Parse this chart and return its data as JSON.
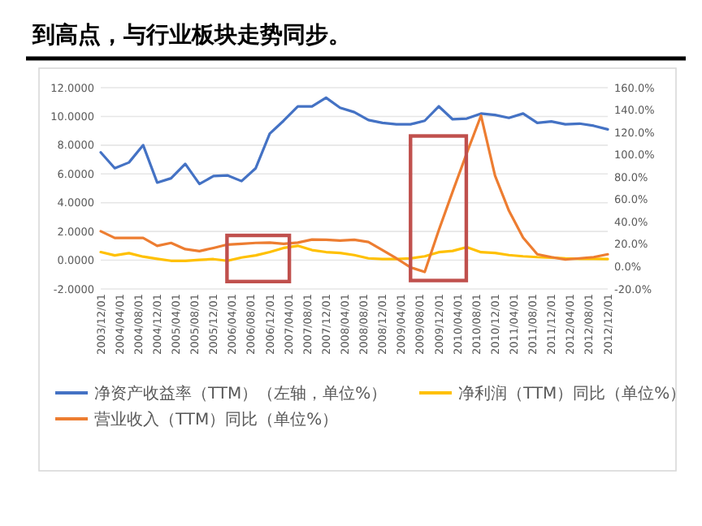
{
  "chart_data": {
    "type": "line",
    "title": "到高点，与行业板块走势同步。",
    "x": [
      "2003-12-01",
      "2004-03-01",
      "2004-06-01",
      "2004-09-01",
      "2004-12-01",
      "2005-03-01",
      "2005-06-01",
      "2005-09-01",
      "2005-12-01",
      "2006-03-01",
      "2006-06-01",
      "2006-09-01",
      "2006-12-01",
      "2007-03-01",
      "2007-06-01",
      "2007-09-01",
      "2007-12-01",
      "2008-03-01",
      "2008-06-01",
      "2008-09-01",
      "2008-12-01",
      "2009-03-01",
      "2009-06-01",
      "2009-09-01",
      "2009-12-01",
      "2010-03-01",
      "2010-06-01",
      "2010-09-01",
      "2010-12-01",
      "2011-03-01",
      "2011-06-01",
      "2011-09-01",
      "2011-12-01",
      "2012-03-01",
      "2012-06-01",
      "2012-09-01",
      "2012-12-01"
    ],
    "series": [
      {
        "name": "净资产收益率（TTM）（左轴，单位%）",
        "color": "#4472c4",
        "values": [
          7.5,
          6.4,
          6.8,
          8.0,
          5.4,
          5.7,
          6.7,
          5.3,
          5.85,
          5.9,
          5.5,
          6.4,
          8.8,
          9.7,
          10.7,
          10.7,
          11.3,
          10.6,
          10.3,
          9.75,
          9.55,
          9.45,
          9.45,
          9.7,
          10.7,
          9.8,
          9.85,
          10.2,
          10.1,
          9.9,
          10.2,
          9.55,
          9.65,
          9.45,
          9.5,
          9.35,
          9.1
        ]
      },
      {
        "name": "净利润（TTM）同比（单位%）",
        "color": "#ffc000",
        "axis": "y2",
        "values": [
          13,
          10,
          12,
          8.9,
          7,
          5.2,
          5.2,
          6,
          6.7,
          5.2,
          8.1,
          10,
          13,
          16.7,
          18.6,
          14.8,
          13,
          12.2,
          10.3,
          7.4,
          6.7,
          6.7,
          7.4,
          9.2,
          12.9,
          14,
          17.4,
          12.9,
          12.2,
          10.3,
          9.2,
          8.5,
          8.1,
          7.4,
          7,
          7,
          6.7
        ]
      },
      {
        "name": "营业收入（TTM）同比（单位%）",
        "color": "#ed7d31",
        "axis": "y2",
        "values": [
          31.6,
          25.6,
          25.6,
          25.6,
          18.6,
          21.2,
          15.6,
          13.8,
          16.7,
          19.7,
          20.4,
          21.2,
          21.5,
          20.4,
          21.5,
          24.2,
          24,
          23.3,
          24,
          22,
          14.8,
          7.4,
          -0.7,
          -4.8,
          32.5,
          67,
          101.6,
          135,
          81.3,
          50,
          25.9,
          11,
          8.5,
          6.3,
          7.4,
          8.5,
          11
        ]
      }
    ],
    "xlim": [
      "2003-12-01",
      "2012-12-01"
    ],
    "xticks": [
      {
        "value": "2003-12-01",
        "label": "2003/12/01"
      },
      {
        "value": "2004-04-01",
        "label": "2004/04/01"
      },
      {
        "value": "2004-08-01",
        "label": "2004/08/01"
      },
      {
        "value": "2004-12-01",
        "label": "2004/12/01"
      },
      {
        "value": "2005-04-01",
        "label": "2005/04/01"
      },
      {
        "value": "2005-08-01",
        "label": "2005/08/01"
      },
      {
        "value": "2005-12-01",
        "label": "2005/12/01"
      },
      {
        "value": "2006-04-01",
        "label": "2006/04/01"
      },
      {
        "value": "2006-08-01",
        "label": "2006/08/01"
      },
      {
        "value": "2006-12-01",
        "label": "2006/12/01"
      },
      {
        "value": "2007-04-01",
        "label": "2007/04/01"
      },
      {
        "value": "2007-08-01",
        "label": "2007/08/01"
      },
      {
        "value": "2007-12-01",
        "label": "2007/12/01"
      },
      {
        "value": "2008-04-01",
        "label": "2008/04/01"
      },
      {
        "value": "2008-08-01",
        "label": "2008/08/01"
      },
      {
        "value": "2008-12-01",
        "label": "2008/12/01"
      },
      {
        "value": "2009-04-01",
        "label": "2009/04/01"
      },
      {
        "value": "2009-08-01",
        "label": "2009/08/01"
      },
      {
        "value": "2009-12-01",
        "label": "2009/12/01"
      },
      {
        "value": "2010-04-01",
        "label": "2010/04/01"
      },
      {
        "value": "2010-08-01",
        "label": "2010/08/01"
      },
      {
        "value": "2010-12-01",
        "label": "2010/12/01"
      },
      {
        "value": "2011-04-01",
        "label": "2011/04/01"
      },
      {
        "value": "2011-08-01",
        "label": "2011/08/01"
      },
      {
        "value": "2011-12-01",
        "label": "2011/12/01"
      },
      {
        "value": "2012-04-01",
        "label": "2012/04/01"
      },
      {
        "value": "2012-08-01",
        "label": "2012/08/01"
      },
      {
        "value": "2012-12-01",
        "label": "2012/12/01"
      }
    ],
    "ylim": [
      -2,
      12
    ],
    "yticks": [
      {
        "value": -2,
        "label": "-2.0000"
      },
      {
        "value": 0,
        "label": "0.0000"
      },
      {
        "value": 2,
        "label": "2.0000"
      },
      {
        "value": 4,
        "label": "4.0000"
      },
      {
        "value": 6,
        "label": "6.0000"
      },
      {
        "value": 8,
        "label": "8.0000"
      },
      {
        "value": 10,
        "label": "10.0000"
      },
      {
        "value": 12,
        "label": "12.0000"
      }
    ],
    "y2lim": [
      -20,
      160
    ],
    "y2ticks": [
      {
        "value": -20,
        "label": "-20.0%"
      },
      {
        "value": 0,
        "label": "0.0%"
      },
      {
        "value": 20,
        "label": "20.0%"
      },
      {
        "value": 40,
        "label": "40.0%"
      },
      {
        "value": 60,
        "label": "60.0%"
      },
      {
        "value": 80,
        "label": "80.0%"
      },
      {
        "value": 100,
        "label": "100.0%"
      },
      {
        "value": 120,
        "label": "120.0%"
      },
      {
        "value": 140,
        "label": "140.0%"
      },
      {
        "value": 160,
        "label": "160.0%"
      }
    ],
    "grid": "y",
    "legend": "bottom",
    "marker": "none",
    "line_style": "solid"
  }
}
